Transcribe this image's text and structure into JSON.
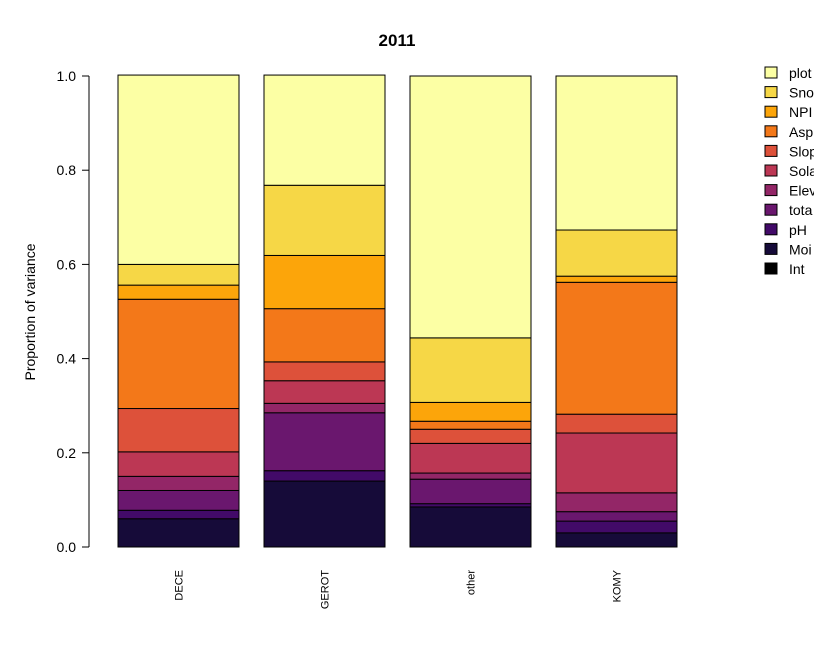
{
  "chart_data": {
    "type": "bar",
    "stacked": true,
    "title": "2011",
    "xlabel": "",
    "ylabel": "Proportion of variance",
    "ylim": [
      0,
      1
    ],
    "yticks": [
      "0.0",
      "0.2",
      "0.4",
      "0.6",
      "0.8",
      "1.0"
    ],
    "categories": [
      "DECE",
      "GEROT",
      "other",
      "KOMY"
    ],
    "series": [
      {
        "name": "Int",
        "color": "#000000",
        "values": [
          0.0,
          0.0,
          0.0,
          0.0
        ]
      },
      {
        "name": "Moi",
        "color": "#160b39",
        "values": [
          0.06,
          0.14,
          0.085,
          0.03
        ]
      },
      {
        "name": "pH",
        "color": "#420a68",
        "values": [
          0.018,
          0.022,
          0.007,
          0.025
        ]
      },
      {
        "name": "tota",
        "color": "#6a176e",
        "values": [
          0.042,
          0.123,
          0.052,
          0.02
        ]
      },
      {
        "name": "Elev",
        "color": "#932667",
        "values": [
          0.03,
          0.02,
          0.013,
          0.04
        ]
      },
      {
        "name": "Sola",
        "color": "#bc3754",
        "values": [
          0.052,
          0.048,
          0.063,
          0.127
        ]
      },
      {
        "name": "Slop",
        "color": "#dd513a",
        "values": [
          0.092,
          0.04,
          0.03,
          0.04
        ]
      },
      {
        "name": "Asp",
        "color": "#f37819",
        "values": [
          0.232,
          0.113,
          0.017,
          0.28
        ]
      },
      {
        "name": "NPI",
        "color": "#fca50a",
        "values": [
          0.03,
          0.113,
          0.04,
          0.013
        ]
      },
      {
        "name": "Sno",
        "color": "#f6d746",
        "values": [
          0.044,
          0.149,
          0.137,
          0.098
        ]
      },
      {
        "name": "plot",
        "color": "#fcffa4",
        "values": [
          0.402,
          0.234,
          0.556,
          0.327
        ]
      }
    ],
    "legend_position": "right",
    "legend_labels": [
      "plot",
      "Sno",
      "NPI",
      "Asp",
      "Slop",
      "Sola",
      "Elev",
      "tota",
      "pH",
      "Moi",
      "Int"
    ]
  }
}
